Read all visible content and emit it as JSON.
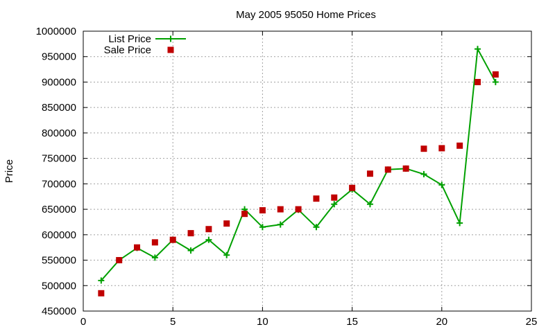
{
  "chart_data": {
    "type": "line",
    "title": "May 2005 95050 Home Prices",
    "xlabel": "",
    "ylabel": "Price",
    "xlim": [
      0,
      25
    ],
    "ylim": [
      450000,
      1000000
    ],
    "x_ticks": [
      0,
      5,
      10,
      15,
      20,
      25
    ],
    "y_ticks": [
      450000,
      500000,
      550000,
      600000,
      650000,
      700000,
      750000,
      800000,
      850000,
      900000,
      950000,
      1000000
    ],
    "grid": true,
    "legend_position": "top-left",
    "series": [
      {
        "name": "List Price",
        "style": "linespoints",
        "marker": "plus",
        "color": "#00a000",
        "x": [
          1,
          2,
          3,
          4,
          5,
          6,
          7,
          8,
          9,
          10,
          11,
          12,
          13,
          14,
          15,
          16,
          17,
          18,
          19,
          20,
          21,
          22,
          23
        ],
        "y": [
          510000,
          550000,
          574000,
          555000,
          590000,
          569000,
          590000,
          560000,
          650000,
          615000,
          620000,
          649000,
          615000,
          660000,
          689000,
          660000,
          728000,
          730000,
          719000,
          698000,
          623000,
          965000,
          900000
        ]
      },
      {
        "name": "Sale Price",
        "style": "points",
        "marker": "square",
        "color": "#c00000",
        "x": [
          1,
          2,
          3,
          4,
          5,
          6,
          7,
          8,
          9,
          10,
          11,
          12,
          13,
          14,
          15,
          16,
          17,
          18,
          19,
          20,
          21,
          22,
          23
        ],
        "y": [
          485000,
          550000,
          575000,
          585000,
          590000,
          603000,
          611000,
          622000,
          641000,
          648000,
          650000,
          650000,
          671000,
          673000,
          692000,
          720000,
          728000,
          730000,
          769000,
          770000,
          775000,
          900000,
          915000
        ]
      }
    ]
  }
}
